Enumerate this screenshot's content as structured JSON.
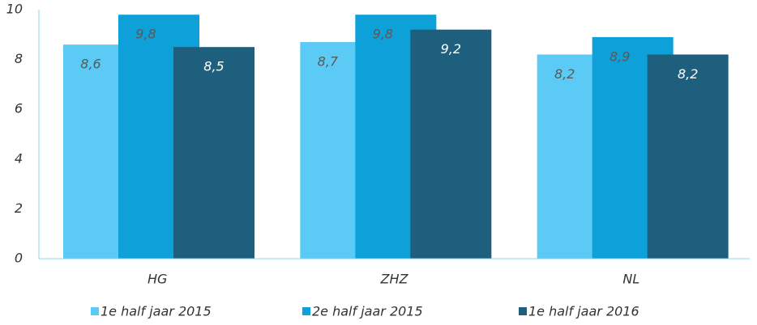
{
  "chart_data": {
    "type": "bar",
    "categories": [
      "HG",
      "ZHZ",
      "NL"
    ],
    "series": [
      {
        "name": "1e half jaar 2015",
        "color": "#5bcbf5",
        "values": [
          8.6,
          8.7,
          8.2
        ],
        "value_labels": [
          "8,6",
          "8,7",
          "8,2"
        ]
      },
      {
        "name": "2e half jaar 2015",
        "color": "#0ea0d9",
        "values": [
          9.8,
          9.8,
          8.9
        ],
        "value_labels": [
          "9,8",
          "9,8",
          "8,9"
        ]
      },
      {
        "name": "1e half jaar 2016",
        "color": "#1f5f7e",
        "values": [
          8.5,
          9.2,
          8.2
        ],
        "value_labels": [
          "8,5",
          "9,2",
          "8,2"
        ]
      }
    ],
    "ylim": [
      0,
      10
    ],
    "yticks": [
      0,
      2,
      4,
      6,
      8,
      10
    ],
    "grid": false,
    "legend": "bottom"
  }
}
